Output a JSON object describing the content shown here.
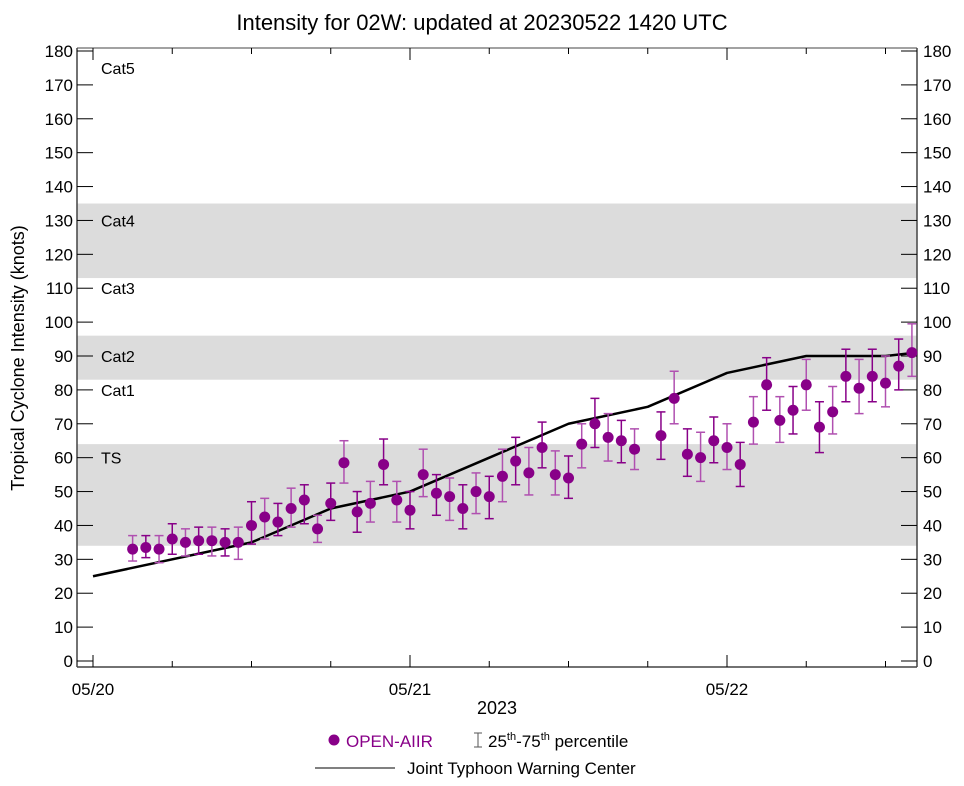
{
  "chart_data": {
    "type": "scatter",
    "title": "Intensity for 02W: updated at 20230522 1420 UTC",
    "ylabel": "Tropical Cyclone Intensity (knots)",
    "xlabel": "2023",
    "ylim": [
      0,
      180
    ],
    "yticks": [
      0,
      10,
      20,
      30,
      40,
      50,
      60,
      70,
      80,
      90,
      100,
      110,
      120,
      130,
      140,
      150,
      160,
      170,
      180
    ],
    "xlim_hours": [
      0,
      62.3
    ],
    "x_unit": "hours since 05/20 00 UTC",
    "xticks_major": [
      {
        "hour": 0,
        "label": "05/20"
      },
      {
        "hour": 24,
        "label": "05/21"
      },
      {
        "hour": 48,
        "label": "05/22"
      }
    ],
    "xticks_minor_hours": [
      6,
      12,
      18,
      30,
      36,
      42,
      54,
      60
    ],
    "categories": [
      {
        "label": "TS",
        "min": 34,
        "max": 64,
        "shaded": true
      },
      {
        "label": "Cat1",
        "min": 64,
        "max": 83,
        "shaded": false
      },
      {
        "label": "Cat2",
        "min": 83,
        "max": 96,
        "shaded": true
      },
      {
        "label": "Cat3",
        "min": 96,
        "max": 113,
        "shaded": false
      },
      {
        "label": "Cat4",
        "min": 113,
        "max": 135,
        "shaded": true
      },
      {
        "label": "Cat5",
        "min": 135,
        "max": 180,
        "shaded": false
      }
    ],
    "colors": {
      "open_aiir": "#880088",
      "open_aiir_bar": "#b050b0",
      "jtwc": "#000000",
      "band": "#dcdcdc"
    },
    "series": [
      {
        "name": "OPEN-AIIR",
        "kind": "points_with_errorbars",
        "points": [
          {
            "h": 3,
            "v": 33,
            "lo": 29.5,
            "hi": 37
          },
          {
            "h": 4,
            "v": 33.5,
            "lo": 30.5,
            "hi": 37
          },
          {
            "h": 5,
            "v": 33,
            "lo": 29,
            "hi": 37
          },
          {
            "h": 6,
            "v": 36,
            "lo": 31.5,
            "hi": 40.5
          },
          {
            "h": 7,
            "v": 35,
            "lo": 31,
            "hi": 39
          },
          {
            "h": 8,
            "v": 35.5,
            "lo": 31.5,
            "hi": 39.5
          },
          {
            "h": 9,
            "v": 35.5,
            "lo": 31,
            "hi": 39.5
          },
          {
            "h": 10,
            "v": 35,
            "lo": 31,
            "hi": 39
          },
          {
            "h": 11,
            "v": 35,
            "lo": 30,
            "hi": 39.5
          },
          {
            "h": 12,
            "v": 40,
            "lo": 34.5,
            "hi": 47
          },
          {
            "h": 13,
            "v": 42.5,
            "lo": 36,
            "hi": 48
          },
          {
            "h": 14,
            "v": 41,
            "lo": 37,
            "hi": 46.5
          },
          {
            "h": 15,
            "v": 45,
            "lo": 39.5,
            "hi": 51
          },
          {
            "h": 16,
            "v": 47.5,
            "lo": 40.5,
            "hi": 52
          },
          {
            "h": 17,
            "v": 39,
            "lo": 35,
            "hi": 43
          },
          {
            "h": 18,
            "v": 46.5,
            "lo": 41.5,
            "hi": 52.5
          },
          {
            "h": 19,
            "v": 58.5,
            "lo": 52.5,
            "hi": 65
          },
          {
            "h": 20,
            "v": 44,
            "lo": 38,
            "hi": 50
          },
          {
            "h": 21,
            "v": 46.5,
            "lo": 41,
            "hi": 53
          },
          {
            "h": 22,
            "v": 58,
            "lo": 52,
            "hi": 65.5
          },
          {
            "h": 23,
            "v": 47.5,
            "lo": 41,
            "hi": 53
          },
          {
            "h": 24,
            "v": 44.5,
            "lo": 39,
            "hi": 50
          },
          {
            "h": 25,
            "v": 55,
            "lo": 48.5,
            "hi": 62.5
          },
          {
            "h": 26,
            "v": 49.5,
            "lo": 43,
            "hi": 55
          },
          {
            "h": 27,
            "v": 48.5,
            "lo": 41.5,
            "hi": 54
          },
          {
            "h": 28,
            "v": 45,
            "lo": 39,
            "hi": 52
          },
          {
            "h": 29,
            "v": 50,
            "lo": 43.5,
            "hi": 55.5
          },
          {
            "h": 30,
            "v": 48.5,
            "lo": 42,
            "hi": 54.5
          },
          {
            "h": 31,
            "v": 54.5,
            "lo": 47,
            "hi": 62.5
          },
          {
            "h": 32,
            "v": 59,
            "lo": 52,
            "hi": 66
          },
          {
            "h": 33,
            "v": 55.5,
            "lo": 49,
            "hi": 63
          },
          {
            "h": 34,
            "v": 63,
            "lo": 57,
            "hi": 70.5
          },
          {
            "h": 35,
            "v": 55,
            "lo": 49,
            "hi": 62
          },
          {
            "h": 36,
            "v": 54,
            "lo": 48,
            "hi": 60.5
          },
          {
            "h": 37,
            "v": 64,
            "lo": 57,
            "hi": 70
          },
          {
            "h": 38,
            "v": 70,
            "lo": 63,
            "hi": 77.5
          },
          {
            "h": 39,
            "v": 66,
            "lo": 59,
            "hi": 73
          },
          {
            "h": 40,
            "v": 65,
            "lo": 58.5,
            "hi": 71
          },
          {
            "h": 41,
            "v": 62.5,
            "lo": 56.5,
            "hi": 68.5
          },
          {
            "h": 43,
            "v": 66.5,
            "lo": 59.5,
            "hi": 73.5
          },
          {
            "h": 44,
            "v": 77.5,
            "lo": 70,
            "hi": 85.5
          },
          {
            "h": 45,
            "v": 61,
            "lo": 54.5,
            "hi": 68.5
          },
          {
            "h": 46,
            "v": 60,
            "lo": 53,
            "hi": 67.5
          },
          {
            "h": 47,
            "v": 65,
            "lo": 58.5,
            "hi": 72
          },
          {
            "h": 48,
            "v": 63,
            "lo": 56.5,
            "hi": 70
          },
          {
            "h": 49,
            "v": 58,
            "lo": 51.5,
            "hi": 64.5
          },
          {
            "h": 50,
            "v": 70.5,
            "lo": 64,
            "hi": 78
          },
          {
            "h": 51,
            "v": 81.5,
            "lo": 74,
            "hi": 89.5
          },
          {
            "h": 52,
            "v": 71,
            "lo": 64.5,
            "hi": 78
          },
          {
            "h": 53,
            "v": 74,
            "lo": 67,
            "hi": 81
          },
          {
            "h": 54,
            "v": 81.5,
            "lo": 74,
            "hi": 89
          },
          {
            "h": 55,
            "v": 69,
            "lo": 61.5,
            "hi": 76.5
          },
          {
            "h": 56,
            "v": 73.5,
            "lo": 67,
            "hi": 81
          },
          {
            "h": 57,
            "v": 84,
            "lo": 76.5,
            "hi": 92
          },
          {
            "h": 58,
            "v": 80.5,
            "lo": 73,
            "hi": 89
          },
          {
            "h": 59,
            "v": 84,
            "lo": 76.5,
            "hi": 92
          },
          {
            "h": 60,
            "v": 82,
            "lo": 75,
            "hi": 90
          },
          {
            "h": 61,
            "v": 87,
            "lo": 80,
            "hi": 95
          },
          {
            "h": 62,
            "v": 91,
            "lo": 84,
            "hi": 99.5
          }
        ]
      },
      {
        "name": "Joint Typhoon Warning Center",
        "kind": "line",
        "points": [
          {
            "h": 0,
            "v": 25
          },
          {
            "h": 12,
            "v": 35
          },
          {
            "h": 18,
            "v": 45
          },
          {
            "h": 24,
            "v": 50
          },
          {
            "h": 30,
            "v": 60
          },
          {
            "h": 36,
            "v": 70
          },
          {
            "h": 42,
            "v": 75
          },
          {
            "h": 48,
            "v": 85
          },
          {
            "h": 54,
            "v": 90
          },
          {
            "h": 60,
            "v": 90
          },
          {
            "h": 62.3,
            "v": 91
          }
        ]
      }
    ],
    "legend": {
      "position": "bottom-center",
      "open_aiir_label": "OPEN-AIIR",
      "percentile_label_a": "25",
      "percentile_sup_a": "th",
      "percentile_dash": "-75",
      "percentile_sup_b": "th",
      "percentile_tail": " percentile",
      "jtwc_label": "Joint Typhoon Warning Center"
    }
  }
}
